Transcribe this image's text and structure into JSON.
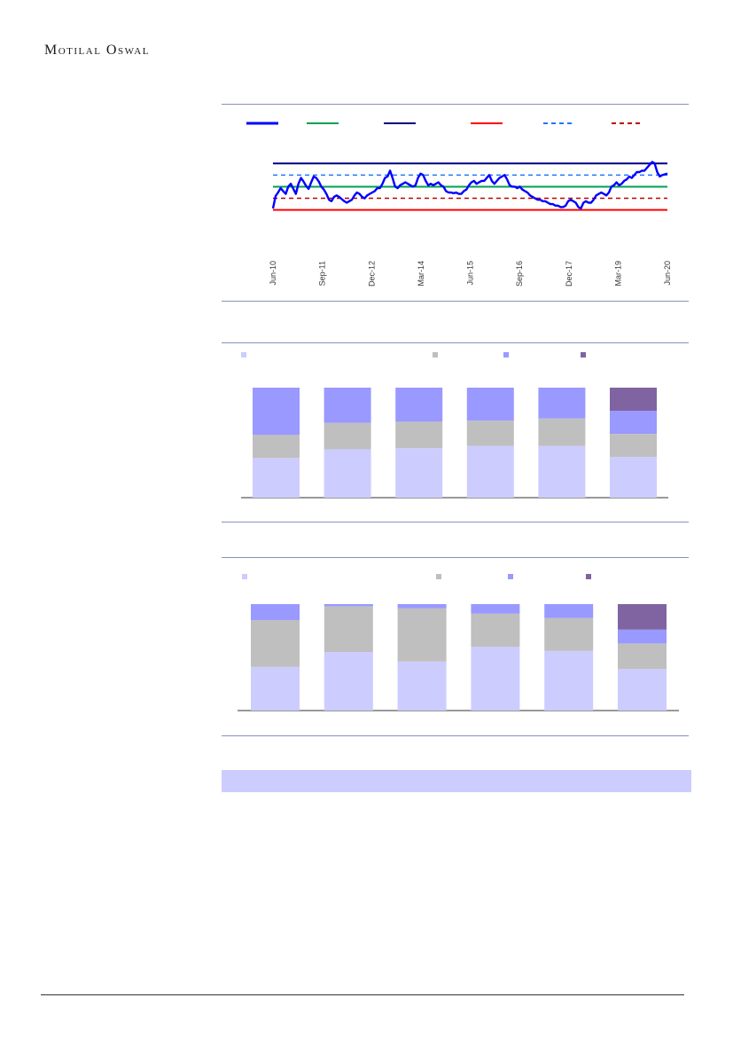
{
  "header": {
    "brand": "Motilal Oswal"
  },
  "colors": {
    "pe_line": "#0000ff",
    "avg_line": "#00a050",
    "max_line": "#000080",
    "min_line": "#ff0000",
    "plus_sd": "#1e78ff",
    "minus_sd": "#c00000",
    "bar_cat1": "#ccccff",
    "bar_cat2": "#bfbfbf",
    "bar_cat3": "#9999ff",
    "bar_cat4": "#8064a2",
    "rule": "#8a8fc4"
  },
  "chart_data": [
    {
      "type": "line",
      "x_ticks": [
        "Jun-10",
        "Sep-11",
        "Dec-12",
        "Mar-14",
        "Jun-15",
        "Sep-16",
        "Dec-17",
        "Mar-19",
        "Jun-20"
      ],
      "ylim": [
        0,
        100
      ],
      "reference_lines": [
        {
          "key": "max",
          "value": 90,
          "style": "solid"
        },
        {
          "key": "plus_sd",
          "value": 74,
          "style": "dashed"
        },
        {
          "key": "avg",
          "value": 58,
          "style": "solid"
        },
        {
          "key": "minus_sd",
          "value": 42,
          "style": "dashed"
        },
        {
          "key": "min",
          "value": 26,
          "style": "solid"
        }
      ],
      "series": [
        {
          "values": [
            28,
            45,
            50,
            56,
            52,
            48,
            58,
            62,
            55,
            48,
            62,
            70,
            65,
            59,
            55,
            64,
            72,
            70,
            65,
            58,
            54,
            48,
            40,
            38,
            44,
            46,
            44,
            41,
            38,
            36,
            38,
            40,
            46,
            50,
            48,
            44,
            42,
            46,
            48,
            50,
            52,
            56,
            56,
            62,
            70,
            72,
            80,
            70,
            58,
            56,
            60,
            62,
            64,
            62,
            60,
            58,
            60,
            70,
            76,
            74,
            66,
            60,
            62,
            60,
            62,
            64,
            60,
            58,
            52,
            50,
            50,
            49,
            50,
            48,
            48,
            52,
            54,
            60,
            64,
            66,
            62,
            64,
            66,
            66,
            70,
            74,
            66,
            62,
            66,
            70,
            72,
            74,
            68,
            60,
            58,
            58,
            56,
            58,
            54,
            52,
            50,
            46,
            44,
            42,
            40,
            40,
            38,
            38,
            36,
            34,
            34,
            32,
            32,
            30,
            30,
            32,
            38,
            40,
            38,
            36,
            30,
            28,
            36,
            38,
            36,
            36,
            40,
            46,
            48,
            50,
            48,
            46,
            50,
            58,
            60,
            64,
            60,
            62,
            66,
            68,
            72,
            70,
            74,
            78,
            78,
            80,
            80,
            84,
            88,
            92,
            90,
            78,
            72,
            74,
            75,
            76
          ]
        }
      ]
    },
    {
      "type": "bar",
      "stacked": true,
      "categories": [
        "",
        "",
        "",
        "",
        "",
        ""
      ],
      "ylim": [
        0,
        100
      ],
      "series": [
        {
          "key": "cat1",
          "values": [
            36,
            44,
            45,
            47,
            47,
            37
          ]
        },
        {
          "key": "cat2",
          "values": [
            21,
            24,
            24,
            23,
            25,
            21
          ]
        },
        {
          "key": "cat3",
          "values": [
            43,
            32,
            31,
            30,
            28,
            21
          ]
        },
        {
          "key": "cat4",
          "values": [
            0,
            0,
            0,
            0,
            0,
            21
          ]
        }
      ]
    },
    {
      "type": "bar",
      "stacked": true,
      "categories": [
        "",
        "",
        "",
        "",
        "",
        ""
      ],
      "ylim": [
        0,
        100
      ],
      "series": [
        {
          "key": "cat1",
          "values": [
            41,
            55,
            46,
            60,
            56,
            39
          ]
        },
        {
          "key": "cat2",
          "values": [
            44,
            43,
            50,
            31,
            31,
            24
          ]
        },
        {
          "key": "cat3",
          "values": [
            15,
            2,
            4,
            9,
            13,
            13
          ]
        },
        {
          "key": "cat4",
          "values": [
            0,
            0,
            0,
            0,
            0,
            24
          ]
        }
      ]
    }
  ]
}
